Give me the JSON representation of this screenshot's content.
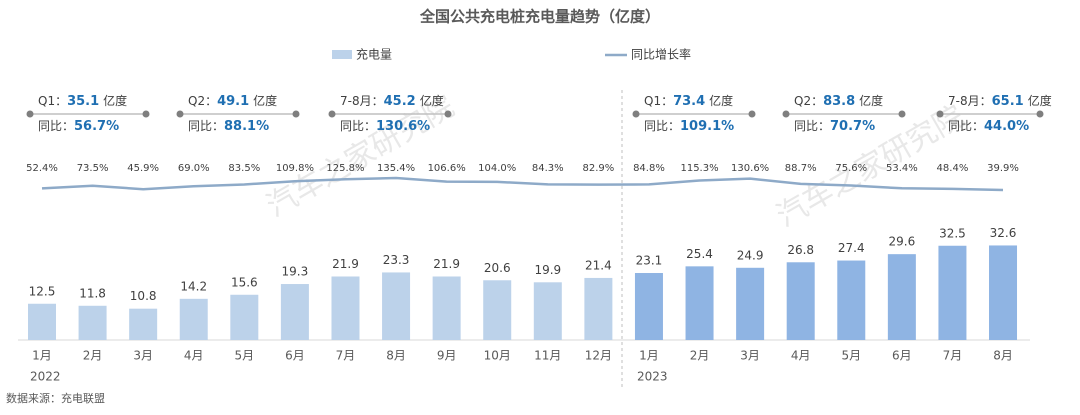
{
  "chart_data": {
    "type": "bar-line",
    "title": "全国公共充电桩充电量趋势（亿度）",
    "groups": [
      {
        "label": "2022",
        "color": "#bcd2ea",
        "categories": [
          "1月",
          "2月",
          "3月",
          "4月",
          "5月",
          "6月",
          "7月",
          "8月",
          "9月",
          "10月",
          "11月",
          "12月"
        ]
      },
      {
        "label": "2023",
        "color": "#8fb4e3",
        "categories": [
          "1月",
          "2月",
          "3月",
          "4月",
          "5月",
          "6月",
          "7月",
          "8月"
        ]
      }
    ],
    "series": [
      {
        "name": "充电量",
        "type": "bar",
        "color": "#bcd2ea",
        "values": [
          12.5,
          11.8,
          10.8,
          14.2,
          15.6,
          19.3,
          21.9,
          23.3,
          21.9,
          20.6,
          19.9,
          21.4,
          23.1,
          25.4,
          24.9,
          26.8,
          27.4,
          29.6,
          32.5,
          32.6
        ]
      },
      {
        "name": "同比增长率",
        "type": "line",
        "color": "#8eaac8",
        "values": [
          52.4,
          73.5,
          45.9,
          69.0,
          83.5,
          109.8,
          125.8,
          135.4,
          106.6,
          104.0,
          84.3,
          82.9,
          84.8,
          115.3,
          130.6,
          88.7,
          75.6,
          53.4,
          48.4,
          39.9
        ],
        "value_labels": [
          "52.4%",
          "73.5%",
          "45.9%",
          "69.0%",
          "83.5%",
          "109.8%",
          "125.8%",
          "135.4%",
          "106.6%",
          "104.0%",
          "84.3%",
          "82.9%",
          "84.8%",
          "115.3%",
          "130.6%",
          "88.7%",
          "75.6%",
          "53.4%",
          "48.4%",
          "39.9%"
        ]
      }
    ],
    "annotations": [
      {
        "period": "Q1：",
        "value": "35.1",
        "unit": "亿度",
        "yoy_label": "同比：",
        "yoy": "56.7%"
      },
      {
        "period": "Q2：",
        "value": "49.1",
        "unit": "亿度",
        "yoy_label": "同比：",
        "yoy": "88.1%"
      },
      {
        "period": "7-8月：",
        "value": "45.2",
        "unit": "亿度",
        "yoy_label": "同比：",
        "yoy": "130.6%"
      },
      {
        "period": "Q1：",
        "value": "73.4",
        "unit": "亿度",
        "yoy_label": "同比：",
        "yoy": "109.1%"
      },
      {
        "period": "Q2：",
        "value": "83.8",
        "unit": "亿度",
        "yoy_label": "同比：",
        "yoy": "70.7%"
      },
      {
        "period": "7-8月：",
        "value": "65.1",
        "unit": "亿度",
        "yoy_label": "同比：",
        "yoy": "44.0%"
      }
    ],
    "watermark": "汽车之家研究院",
    "source": "数据来源：充电联盟"
  }
}
